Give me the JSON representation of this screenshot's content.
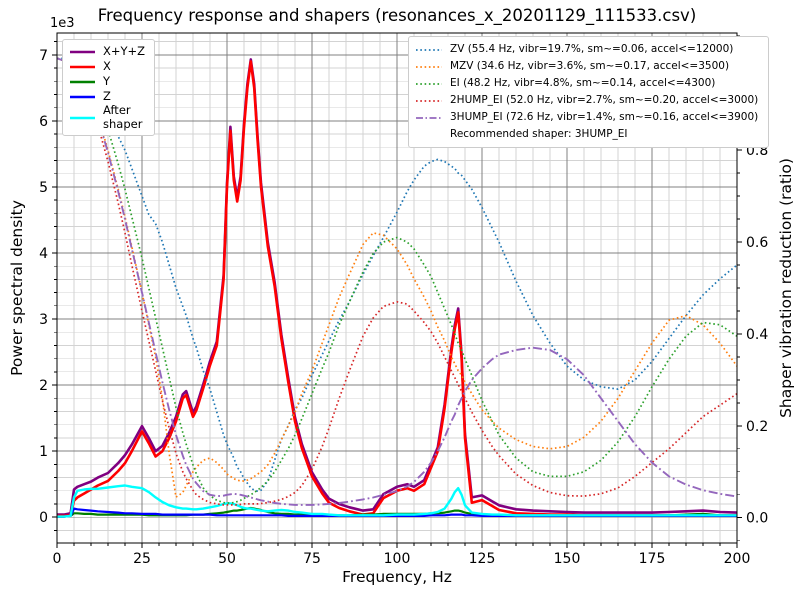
{
  "chart_data": {
    "type": "line",
    "title": "Frequency response and shapers (resonances_x_20201129_111533.csv)",
    "xlabel": "Frequency, Hz",
    "ylabel_left": "Power spectral density",
    "ylabel_right": "Shaper vibration reduction (ratio)",
    "y_left_offset_text": "1e3",
    "psd_unit": "1e3",
    "recommended_shaper": "3HUMP_EI",
    "xlim": [
      0,
      200
    ],
    "ylim_left_1e3": [
      -0.39,
      7.33
    ],
    "ylim_right": [
      -0.055,
      1.055
    ],
    "x_major_ticks": [
      0,
      25,
      50,
      75,
      100,
      125,
      150,
      175,
      200
    ],
    "x_minor_step": 5,
    "y_left_ticks": [
      0,
      1,
      2,
      3,
      4,
      5,
      6,
      7
    ],
    "y_left_minor_step": 0.2,
    "y_right_ticks": [
      0.0,
      0.2,
      0.4,
      0.6,
      0.8,
      1.0
    ],
    "y_right_tick_labels": [
      "0.0",
      "0.2",
      "0.4",
      "0.6",
      "0.8",
      "1.0"
    ],
    "y_right_minor_step": 0.05,
    "grid": {
      "major_color": "#808080",
      "minor_color": "#d3d3d3"
    },
    "x": [
      0,
      2,
      4,
      5,
      6,
      8,
      10,
      12,
      15,
      18,
      20,
      22,
      25,
      27,
      29,
      31,
      33,
      35,
      37,
      38,
      40,
      41,
      43,
      45,
      47,
      49,
      50,
      51,
      52,
      53,
      54,
      55,
      56,
      57,
      58,
      59,
      60,
      62,
      64,
      66,
      68,
      70,
      72,
      75,
      78,
      80,
      83,
      86,
      90,
      93,
      96,
      100,
      103,
      105,
      108,
      110,
      112,
      114,
      116,
      117,
      118,
      119,
      120,
      122,
      125,
      128,
      130,
      135,
      140,
      145,
      150,
      155,
      160,
      165,
      170,
      175,
      180,
      185,
      190,
      195,
      200
    ],
    "series": [
      {
        "name": "X+Y+Z",
        "axis": "left",
        "color": "#800080",
        "style": "solid",
        "width": 2.6,
        "values": [
          0.04,
          0.04,
          0.06,
          0.42,
          0.46,
          0.5,
          0.54,
          0.6,
          0.67,
          0.82,
          0.94,
          1.1,
          1.38,
          1.2,
          1.0,
          1.08,
          1.28,
          1.52,
          1.86,
          1.91,
          1.58,
          1.68,
          2.01,
          2.36,
          2.66,
          3.66,
          5.06,
          5.91,
          5.16,
          4.84,
          5.16,
          5.96,
          6.56,
          6.93,
          6.56,
          5.76,
          5.06,
          4.16,
          3.56,
          2.76,
          2.11,
          1.51,
          1.11,
          0.68,
          0.42,
          0.28,
          0.2,
          0.15,
          0.1,
          0.12,
          0.35,
          0.46,
          0.5,
          0.46,
          0.56,
          0.81,
          1.06,
          1.71,
          2.56,
          2.91,
          3.16,
          2.46,
          1.26,
          0.3,
          0.33,
          0.24,
          0.18,
          0.12,
          0.1,
          0.09,
          0.08,
          0.07,
          0.07,
          0.07,
          0.07,
          0.07,
          0.08,
          0.09,
          0.1,
          0.08,
          0.07
        ]
      },
      {
        "name": "X",
        "axis": "left",
        "color": "#ff0000",
        "style": "solid",
        "width": 2.6,
        "values": [
          0.02,
          0.02,
          0.03,
          0.25,
          0.3,
          0.36,
          0.42,
          0.48,
          0.55,
          0.7,
          0.82,
          1.0,
          1.3,
          1.12,
          0.92,
          1.0,
          1.2,
          1.45,
          1.8,
          1.85,
          1.52,
          1.62,
          1.95,
          2.3,
          2.6,
          3.6,
          5.0,
          5.85,
          5.1,
          4.78,
          5.1,
          5.9,
          6.5,
          6.9,
          6.5,
          5.7,
          5.0,
          4.1,
          3.5,
          2.7,
          2.05,
          1.45,
          1.05,
          0.62,
          0.36,
          0.22,
          0.14,
          0.09,
          0.04,
          0.06,
          0.29,
          0.4,
          0.44,
          0.4,
          0.5,
          0.75,
          1.0,
          1.65,
          2.5,
          2.85,
          3.1,
          2.4,
          1.2,
          0.22,
          0.26,
          0.17,
          0.11,
          0.06,
          0.05,
          0.04,
          0.04,
          0.03,
          0.03,
          0.03,
          0.03,
          0.03,
          0.03,
          0.03,
          0.03,
          0.03,
          0.03
        ]
      },
      {
        "name": "Y",
        "axis": "left",
        "color": "#008000",
        "style": "solid",
        "width": 2.2,
        "values": [
          0.01,
          0.01,
          0.02,
          0.06,
          0.06,
          0.05,
          0.05,
          0.04,
          0.04,
          0.04,
          0.04,
          0.04,
          0.04,
          0.03,
          0.03,
          0.03,
          0.03,
          0.03,
          0.03,
          0.03,
          0.04,
          0.04,
          0.04,
          0.05,
          0.06,
          0.07,
          0.08,
          0.09,
          0.1,
          0.1,
          0.11,
          0.12,
          0.13,
          0.14,
          0.13,
          0.12,
          0.11,
          0.08,
          0.06,
          0.05,
          0.05,
          0.04,
          0.04,
          0.04,
          0.03,
          0.03,
          0.03,
          0.03,
          0.04,
          0.04,
          0.05,
          0.05,
          0.05,
          0.05,
          0.05,
          0.06,
          0.06,
          0.07,
          0.09,
          0.1,
          0.1,
          0.09,
          0.07,
          0.05,
          0.04,
          0.03,
          0.03,
          0.02,
          0.02,
          0.02,
          0.02,
          0.02,
          0.02,
          0.02,
          0.02,
          0.02,
          0.03,
          0.04,
          0.05,
          0.03,
          0.02
        ]
      },
      {
        "name": "Z",
        "axis": "left",
        "color": "#0000ff",
        "style": "solid",
        "width": 2.2,
        "values": [
          0.01,
          0.01,
          0.02,
          0.13,
          0.12,
          0.11,
          0.1,
          0.09,
          0.08,
          0.07,
          0.06,
          0.06,
          0.05,
          0.05,
          0.05,
          0.04,
          0.04,
          0.04,
          0.04,
          0.04,
          0.04,
          0.04,
          0.04,
          0.04,
          0.03,
          0.03,
          0.03,
          0.03,
          0.03,
          0.03,
          0.03,
          0.03,
          0.03,
          0.03,
          0.03,
          0.03,
          0.03,
          0.03,
          0.03,
          0.03,
          0.02,
          0.02,
          0.02,
          0.02,
          0.02,
          0.02,
          0.02,
          0.02,
          0.02,
          0.02,
          0.02,
          0.02,
          0.02,
          0.02,
          0.02,
          0.03,
          0.03,
          0.03,
          0.04,
          0.04,
          0.04,
          0.04,
          0.03,
          0.03,
          0.02,
          0.02,
          0.02,
          0.02,
          0.02,
          0.02,
          0.02,
          0.02,
          0.02,
          0.02,
          0.02,
          0.02,
          0.02,
          0.02,
          0.02,
          0.02,
          0.02
        ]
      },
      {
        "name": "After shaper",
        "axis": "left",
        "color": "#00ffff",
        "style": "solid",
        "width": 2.4,
        "values": [
          0.01,
          0.01,
          0.02,
          0.3,
          0.4,
          0.42,
          0.43,
          0.43,
          0.45,
          0.47,
          0.48,
          0.46,
          0.44,
          0.38,
          0.3,
          0.23,
          0.18,
          0.15,
          0.13,
          0.13,
          0.12,
          0.12,
          0.13,
          0.15,
          0.17,
          0.2,
          0.21,
          0.21,
          0.2,
          0.18,
          0.16,
          0.14,
          0.13,
          0.13,
          0.12,
          0.11,
          0.1,
          0.09,
          0.1,
          0.11,
          0.1,
          0.08,
          0.07,
          0.05,
          0.05,
          0.04,
          0.03,
          0.03,
          0.03,
          0.03,
          0.03,
          0.04,
          0.04,
          0.04,
          0.05,
          0.06,
          0.08,
          0.13,
          0.28,
          0.38,
          0.44,
          0.34,
          0.18,
          0.07,
          0.05,
          0.04,
          0.04,
          0.03,
          0.03,
          0.03,
          0.03,
          0.03,
          0.03,
          0.03,
          0.03,
          0.03,
          0.03,
          0.03,
          0.03,
          0.03,
          0.03
        ]
      },
      {
        "name": "ZV",
        "axis": "right",
        "color": "#1f77b4",
        "style": "dotted",
        "width": 1.7,
        "values": [
          1.0,
          1.0,
          0.995,
          0.99,
          0.99,
          0.98,
          0.955,
          0.93,
          0.885,
          0.83,
          0.8,
          0.76,
          0.7,
          0.66,
          0.64,
          0.6,
          0.55,
          0.5,
          0.46,
          0.44,
          0.39,
          0.37,
          0.32,
          0.28,
          0.23,
          0.18,
          0.16,
          0.145,
          0.13,
          0.11,
          0.1,
          0.085,
          0.075,
          0.065,
          0.06,
          0.058,
          0.06,
          0.08,
          0.125,
          0.17,
          0.2,
          0.235,
          0.26,
          0.31,
          0.355,
          0.385,
          0.43,
          0.47,
          0.53,
          0.57,
          0.61,
          0.665,
          0.71,
          0.735,
          0.765,
          0.775,
          0.78,
          0.775,
          0.765,
          0.76,
          0.75,
          0.745,
          0.735,
          0.715,
          0.675,
          0.63,
          0.6,
          0.515,
          0.44,
          0.38,
          0.33,
          0.3,
          0.285,
          0.28,
          0.3,
          0.34,
          0.39,
          0.44,
          0.485,
          0.52,
          0.55
        ]
      },
      {
        "name": "MZV",
        "axis": "right",
        "color": "#ff7f0e",
        "style": "dotted",
        "width": 1.7,
        "values": [
          1.0,
          0.995,
          0.99,
          0.985,
          0.975,
          0.95,
          0.915,
          0.875,
          0.8,
          0.715,
          0.655,
          0.59,
          0.49,
          0.42,
          0.35,
          0.26,
          0.14,
          0.045,
          0.055,
          0.07,
          0.1,
          0.11,
          0.125,
          0.13,
          0.12,
          0.105,
          0.095,
          0.09,
          0.085,
          0.082,
          0.08,
          0.08,
          0.082,
          0.085,
          0.09,
          0.095,
          0.1,
          0.115,
          0.14,
          0.17,
          0.2,
          0.23,
          0.27,
          0.32,
          0.38,
          0.42,
          0.48,
          0.53,
          0.595,
          0.62,
          0.615,
          0.585,
          0.55,
          0.52,
          0.48,
          0.45,
          0.415,
          0.385,
          0.35,
          0.335,
          0.32,
          0.31,
          0.295,
          0.27,
          0.235,
          0.21,
          0.195,
          0.17,
          0.155,
          0.15,
          0.155,
          0.175,
          0.21,
          0.26,
          0.32,
          0.38,
          0.43,
          0.44,
          0.42,
          0.38,
          0.33
        ]
      },
      {
        "name": "EI",
        "axis": "right",
        "color": "#2ca02c",
        "style": "dotted",
        "width": 1.7,
        "values": [
          1.0,
          0.995,
          0.99,
          0.99,
          0.98,
          0.965,
          0.94,
          0.905,
          0.845,
          0.77,
          0.715,
          0.655,
          0.565,
          0.5,
          0.435,
          0.37,
          0.305,
          0.24,
          0.185,
          0.16,
          0.115,
          0.095,
          0.065,
          0.048,
          0.038,
          0.033,
          0.032,
          0.032,
          0.033,
          0.035,
          0.038,
          0.042,
          0.046,
          0.05,
          0.055,
          0.06,
          0.066,
          0.08,
          0.1,
          0.125,
          0.15,
          0.18,
          0.215,
          0.27,
          0.325,
          0.36,
          0.42,
          0.47,
          0.535,
          0.575,
          0.6,
          0.61,
          0.6,
          0.585,
          0.55,
          0.525,
          0.49,
          0.455,
          0.42,
          0.4,
          0.38,
          0.365,
          0.345,
          0.31,
          0.255,
          0.21,
          0.18,
          0.13,
          0.1,
          0.09,
          0.09,
          0.1,
          0.125,
          0.165,
          0.22,
          0.285,
          0.345,
          0.395,
          0.425,
          0.42,
          0.395
        ]
      },
      {
        "name": "2HUMP_EI",
        "axis": "right",
        "color": "#d62728",
        "style": "dotted",
        "width": 1.7,
        "values": [
          1.0,
          0.995,
          0.985,
          0.98,
          0.97,
          0.945,
          0.905,
          0.855,
          0.775,
          0.685,
          0.62,
          0.55,
          0.45,
          0.385,
          0.32,
          0.255,
          0.195,
          0.14,
          0.1,
          0.085,
          0.06,
          0.05,
          0.04,
          0.033,
          0.03,
          0.028,
          0.028,
          0.028,
          0.028,
          0.028,
          0.029,
          0.03,
          0.03,
          0.03,
          0.03,
          0.03,
          0.031,
          0.033,
          0.036,
          0.04,
          0.046,
          0.055,
          0.07,
          0.105,
          0.155,
          0.195,
          0.26,
          0.32,
          0.395,
          0.435,
          0.46,
          0.47,
          0.465,
          0.45,
          0.425,
          0.405,
          0.38,
          0.35,
          0.32,
          0.305,
          0.29,
          0.275,
          0.26,
          0.23,
          0.19,
          0.155,
          0.135,
          0.095,
          0.07,
          0.055,
          0.048,
          0.047,
          0.052,
          0.065,
          0.09,
          0.12,
          0.15,
          0.185,
          0.22,
          0.245,
          0.27
        ]
      },
      {
        "name": "3HUMP_EI",
        "axis": "right",
        "color": "#9467bd",
        "style": "dashdot",
        "width": 1.9,
        "values": [
          1.0,
          0.995,
          0.99,
          0.985,
          0.975,
          0.95,
          0.915,
          0.87,
          0.795,
          0.71,
          0.65,
          0.585,
          0.49,
          0.425,
          0.36,
          0.295,
          0.235,
          0.18,
          0.135,
          0.115,
          0.085,
          0.075,
          0.058,
          0.05,
          0.047,
          0.048,
          0.05,
          0.051,
          0.052,
          0.051,
          0.05,
          0.048,
          0.046,
          0.044,
          0.042,
          0.04,
          0.038,
          0.035,
          0.032,
          0.03,
          0.029,
          0.028,
          0.028,
          0.028,
          0.029,
          0.03,
          0.032,
          0.035,
          0.04,
          0.044,
          0.05,
          0.058,
          0.068,
          0.078,
          0.1,
          0.12,
          0.145,
          0.175,
          0.21,
          0.225,
          0.245,
          0.26,
          0.275,
          0.3,
          0.325,
          0.345,
          0.355,
          0.365,
          0.37,
          0.365,
          0.345,
          0.31,
          0.26,
          0.21,
          0.16,
          0.12,
          0.09,
          0.072,
          0.06,
          0.052,
          0.046
        ]
      }
    ],
    "legend_psd": [
      {
        "label": "X+Y+Z",
        "color": "#800080",
        "style": "solid"
      },
      {
        "label": "X",
        "color": "#ff0000",
        "style": "solid"
      },
      {
        "label": "Y",
        "color": "#008000",
        "style": "solid"
      },
      {
        "label": "Z",
        "color": "#0000ff",
        "style": "solid"
      },
      {
        "label": "After\nshaper",
        "color": "#00ffff",
        "style": "solid"
      }
    ],
    "legend_shapers": [
      {
        "label": "ZV (55.4 Hz, vibr=19.7%, sm~=0.06, accel<=12000)",
        "color": "#1f77b4",
        "style": "dotted"
      },
      {
        "label": "MZV (34.6 Hz, vibr=3.6%, sm~=0.17, accel<=3500)",
        "color": "#ff7f0e",
        "style": "dotted"
      },
      {
        "label": "EI (48.2 Hz, vibr=4.8%, sm~=0.14, accel<=4300)",
        "color": "#2ca02c",
        "style": "dotted"
      },
      {
        "label": "2HUMP_EI (52.0 Hz, vibr=2.7%, sm~=0.20, accel<=3000)",
        "color": "#d62728",
        "style": "dotted"
      },
      {
        "label": "3HUMP_EI (72.6 Hz, vibr=1.4%, sm~=0.16, accel<=3900)",
        "color": "#9467bd",
        "style": "dashdot"
      },
      {
        "label": "Recommended shaper: 3HUMP_EI",
        "color": "",
        "style": "none"
      }
    ]
  }
}
